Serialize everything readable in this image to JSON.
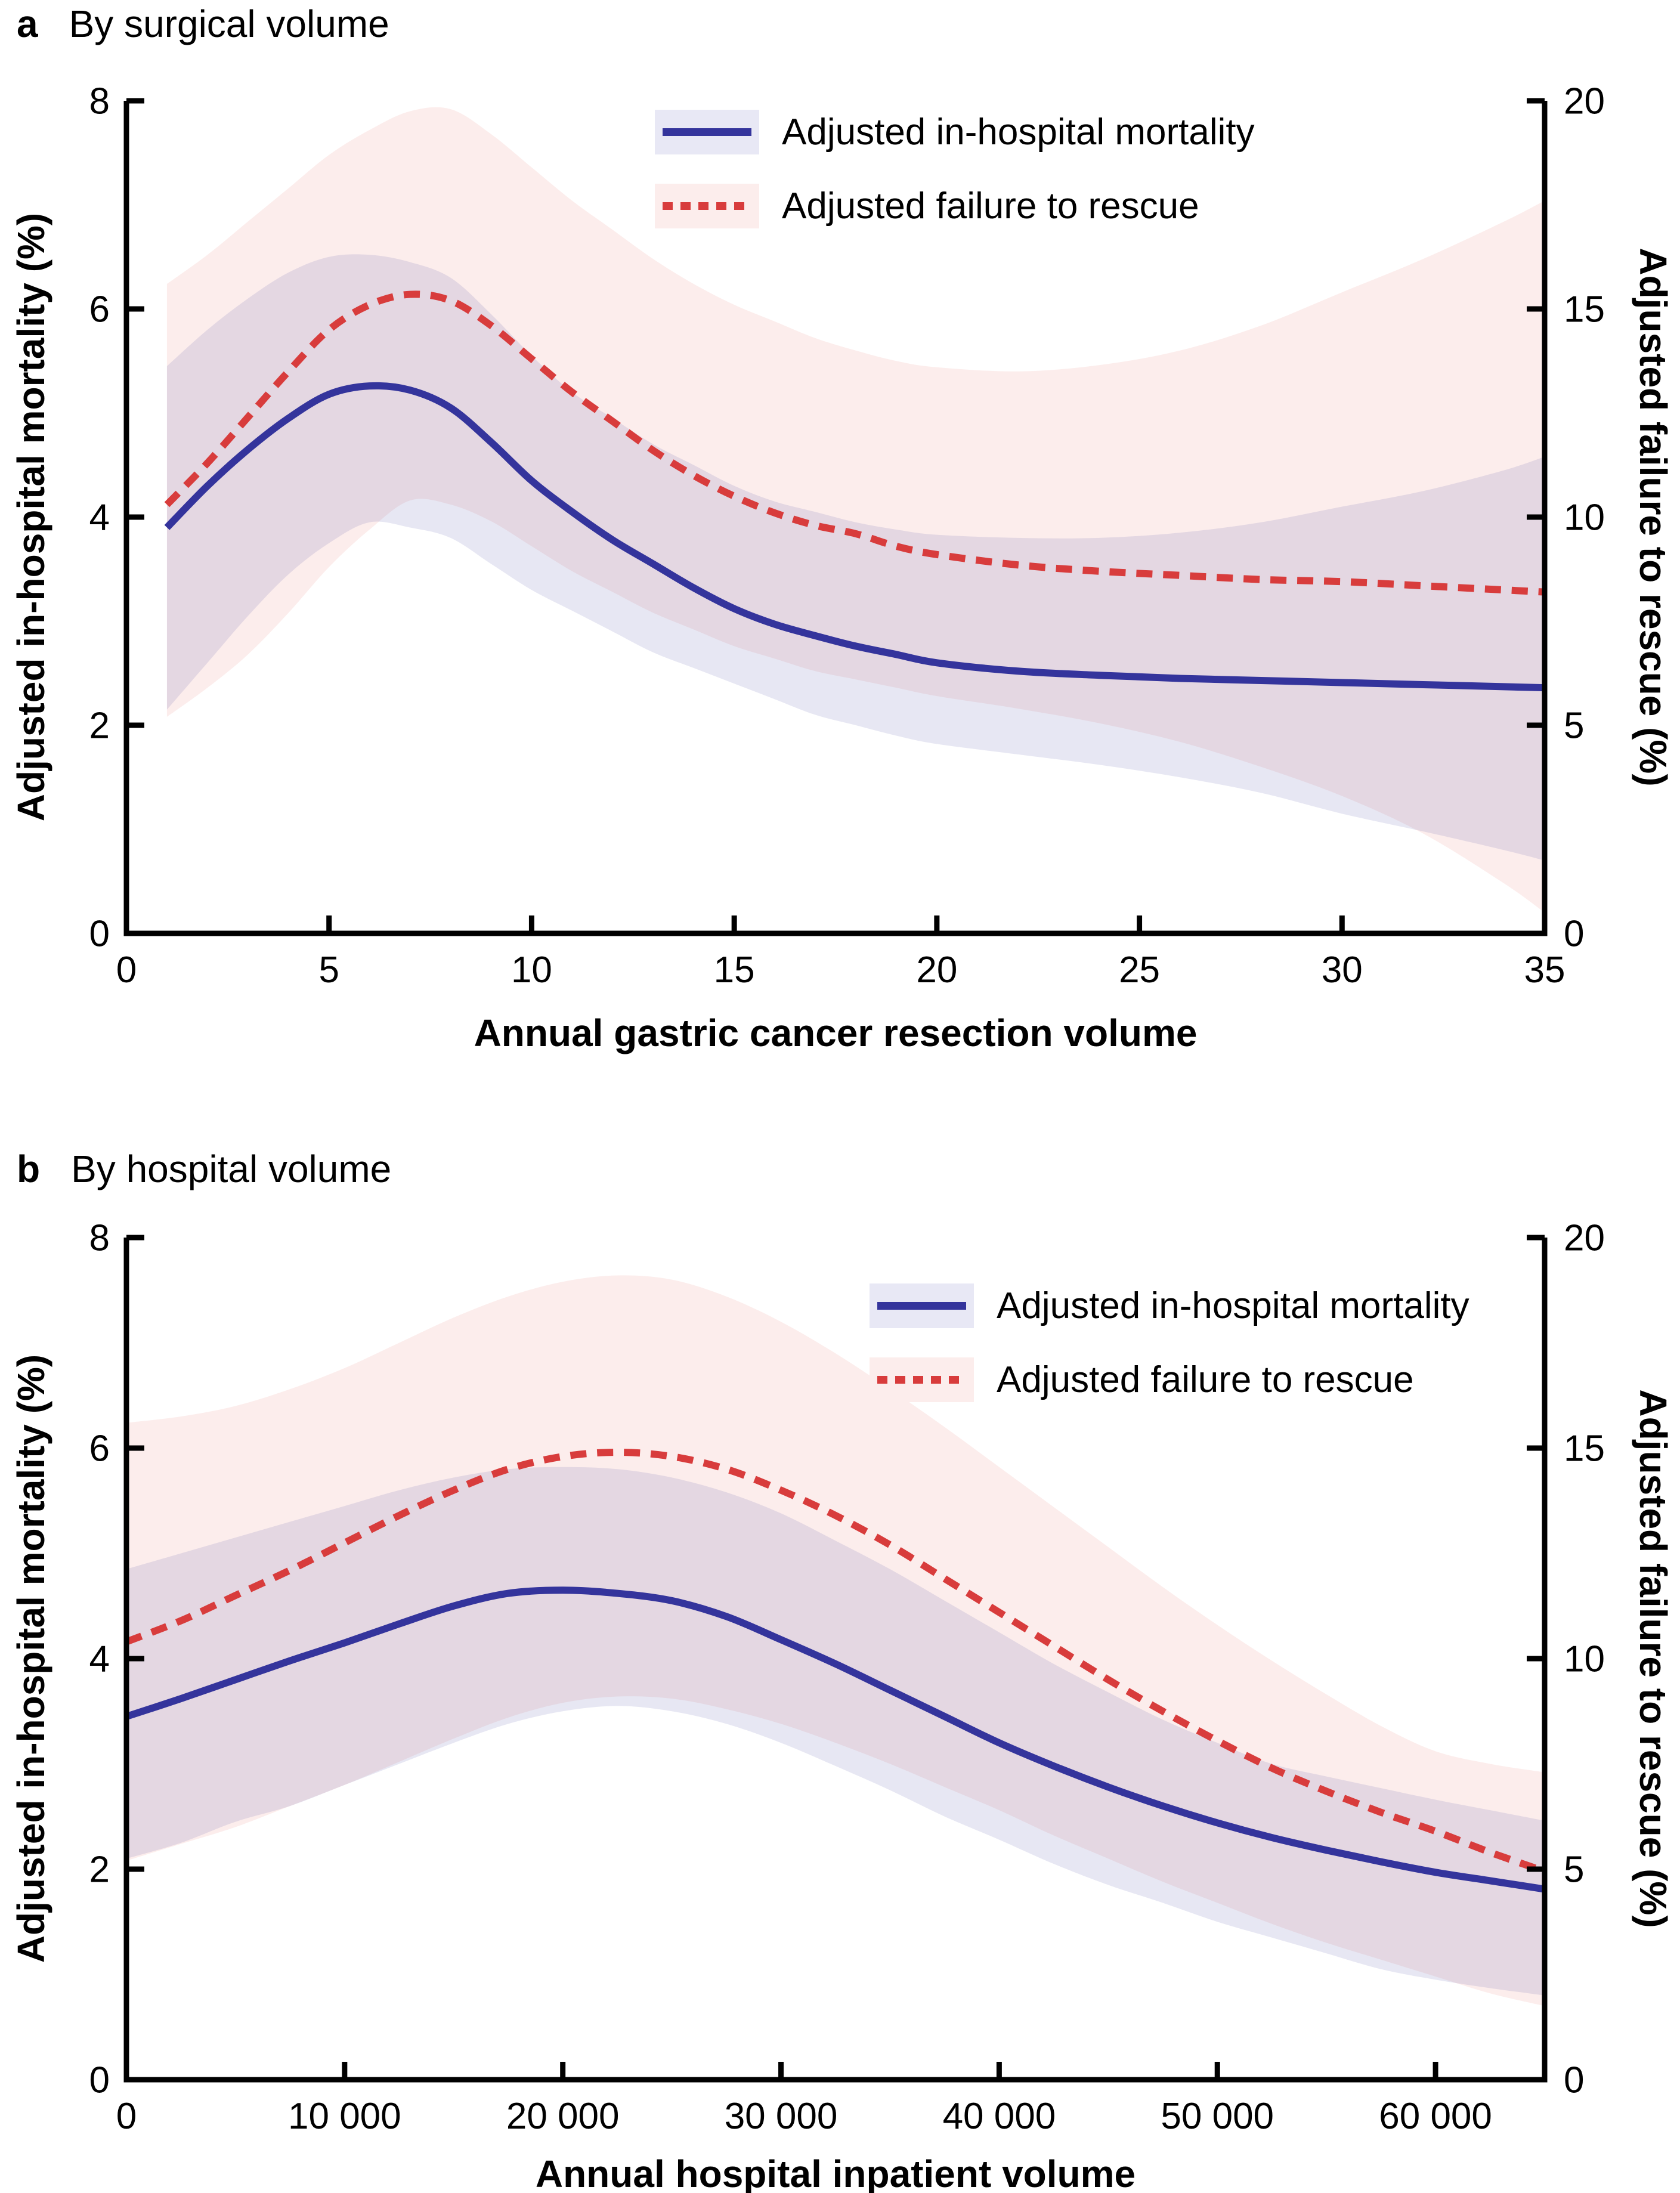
{
  "colors": {
    "mortality_line": "#34349c",
    "failure_to_rescue_line": "#d83c3c",
    "mortality_band_fill": "rgba(88,88,172,0.14)",
    "failure_band_fill": "rgba(232,118,108,0.13)",
    "legend_swatch_mortality_bg": "#e8e8f5",
    "legend_swatch_failure_bg": "#fcedec",
    "axis": "#000000"
  },
  "chart_data": [
    {
      "type": "line",
      "panel_label": "a",
      "title": "By surgical volume",
      "xlabel": "Annual gastric cancer resection volume",
      "ylabel_left": "Adjusted in-hospital mortality (%)",
      "ylabel_right": "Adjusted failure to rescue (%)",
      "xlim": [
        0,
        35
      ],
      "x_ticks": [
        0,
        5,
        10,
        15,
        20,
        25,
        30,
        35
      ],
      "x_tick_labels": [
        "0",
        "5",
        "10",
        "15",
        "20",
        "25",
        "30",
        "35"
      ],
      "ylim_left": [
        0,
        8
      ],
      "y_left_ticks": [
        0,
        2,
        4,
        6,
        8
      ],
      "y_left_tick_labels": [
        "0",
        "2",
        "4",
        "6",
        "8"
      ],
      "ylim_right": [
        0,
        20
      ],
      "y_right_ticks": [
        0,
        5,
        10,
        15,
        20
      ],
      "y_right_tick_labels": [
        "0",
        "5",
        "10",
        "15",
        "20"
      ],
      "grid": false,
      "legend_position": "top-center",
      "legend": [
        {
          "label": "Adjusted in-hospital mortality",
          "series": "mortality"
        },
        {
          "label": "Adjusted failure to rescue",
          "series": "failure_to_rescue"
        }
      ],
      "series": [
        {
          "name": "Adjusted in-hospital mortality",
          "axis": "left",
          "style": "solid",
          "x": [
            1,
            2,
            3,
            4,
            5,
            6,
            7,
            8,
            9,
            10,
            11,
            12,
            13,
            14,
            15,
            16,
            17,
            18,
            19,
            20,
            22,
            24,
            26,
            28,
            30,
            32,
            34,
            35
          ],
          "y": [
            3.9,
            4.3,
            4.65,
            4.95,
            5.18,
            5.26,
            5.22,
            5.05,
            4.72,
            4.35,
            4.05,
            3.78,
            3.55,
            3.32,
            3.12,
            2.97,
            2.86,
            2.76,
            2.68,
            2.6,
            2.52,
            2.48,
            2.45,
            2.43,
            2.41,
            2.39,
            2.37,
            2.36
          ],
          "band_lo": [
            2.15,
            2.6,
            3.05,
            3.45,
            3.75,
            3.95,
            3.9,
            3.8,
            3.55,
            3.3,
            3.1,
            2.9,
            2.7,
            2.55,
            2.4,
            2.25,
            2.1,
            2.0,
            1.9,
            1.82,
            1.72,
            1.62,
            1.5,
            1.35,
            1.15,
            0.98,
            0.8,
            0.7
          ],
          "band_hi": [
            5.45,
            5.8,
            6.1,
            6.35,
            6.5,
            6.52,
            6.45,
            6.3,
            5.95,
            5.55,
            5.2,
            4.95,
            4.7,
            4.5,
            4.3,
            4.15,
            4.05,
            3.95,
            3.88,
            3.83,
            3.8,
            3.8,
            3.85,
            3.95,
            4.1,
            4.25,
            4.45,
            4.58
          ]
        },
        {
          "name": "Adjusted failure to rescue",
          "axis": "right",
          "style": "dashed",
          "x": [
            1,
            2,
            3,
            4,
            5,
            6,
            7,
            8,
            9,
            10,
            11,
            12,
            13,
            14,
            15,
            16,
            17,
            18,
            19,
            20,
            22,
            24,
            26,
            28,
            30,
            32,
            34,
            35
          ],
          "y": [
            10.3,
            11.3,
            12.4,
            13.5,
            14.5,
            15.1,
            15.35,
            15.2,
            14.6,
            13.8,
            13.0,
            12.3,
            11.6,
            11.0,
            10.5,
            10.1,
            9.8,
            9.6,
            9.3,
            9.1,
            8.85,
            8.7,
            8.6,
            8.5,
            8.45,
            8.35,
            8.25,
            8.2
          ],
          "band_lo": [
            5.2,
            5.9,
            6.7,
            7.7,
            8.8,
            9.7,
            10.4,
            10.3,
            9.9,
            9.3,
            8.7,
            8.2,
            7.7,
            7.3,
            6.9,
            6.6,
            6.3,
            6.1,
            5.9,
            5.7,
            5.4,
            5.05,
            4.6,
            4.0,
            3.3,
            2.4,
            1.2,
            0.5
          ],
          "band_hi": [
            15.6,
            16.3,
            17.1,
            17.9,
            18.7,
            19.3,
            19.75,
            19.8,
            19.2,
            18.4,
            17.6,
            16.9,
            16.2,
            15.6,
            15.1,
            14.7,
            14.3,
            14.0,
            13.75,
            13.6,
            13.5,
            13.65,
            14.0,
            14.6,
            15.4,
            16.2,
            17.1,
            17.6
          ]
        }
      ]
    },
    {
      "type": "line",
      "panel_label": "b",
      "title": "By hospital volume",
      "xlabel": "Annual hospital inpatient volume",
      "ylabel_left": "Adjusted in-hospital mortality (%)",
      "ylabel_right": "Adjusted failure to rescue (%)",
      "xlim": [
        0,
        65000
      ],
      "x_ticks": [
        0,
        10000,
        20000,
        30000,
        40000,
        50000,
        60000
      ],
      "x_tick_labels": [
        "0",
        "10 000",
        "20 000",
        "30 000",
        "40 000",
        "50 000",
        "60 000"
      ],
      "ylim_left": [
        0,
        8
      ],
      "y_left_ticks": [
        0,
        2,
        4,
        6,
        8
      ],
      "y_left_tick_labels": [
        "0",
        "2",
        "4",
        "6",
        "8"
      ],
      "ylim_right": [
        0,
        20
      ],
      "y_right_ticks": [
        0,
        5,
        10,
        15,
        20
      ],
      "y_right_tick_labels": [
        "0",
        "5",
        "10",
        "15",
        "20"
      ],
      "grid": false,
      "legend_position": "top-right",
      "legend": [
        {
          "label": "Adjusted in-hospital mortality",
          "series": "mortality"
        },
        {
          "label": "Adjusted failure to rescue",
          "series": "failure_to_rescue"
        }
      ],
      "series": [
        {
          "name": "Adjusted in-hospital mortality",
          "axis": "left",
          "style": "solid",
          "x": [
            0,
            2500,
            5000,
            7500,
            10000,
            12500,
            15000,
            17500,
            20000,
            22500,
            25000,
            27500,
            30000,
            32500,
            35000,
            37500,
            40000,
            42500,
            45000,
            47500,
            50000,
            52500,
            55000,
            57500,
            60000,
            62500,
            65000
          ],
          "y": [
            3.45,
            3.62,
            3.8,
            3.98,
            4.15,
            4.33,
            4.5,
            4.62,
            4.65,
            4.62,
            4.55,
            4.4,
            4.18,
            3.95,
            3.7,
            3.45,
            3.2,
            2.98,
            2.78,
            2.6,
            2.44,
            2.3,
            2.18,
            2.07,
            1.97,
            1.89,
            1.81
          ],
          "band_lo": [
            2.1,
            2.25,
            2.45,
            2.6,
            2.8,
            3.0,
            3.2,
            3.38,
            3.5,
            3.55,
            3.5,
            3.38,
            3.2,
            2.98,
            2.75,
            2.5,
            2.28,
            2.05,
            1.85,
            1.68,
            1.5,
            1.35,
            1.2,
            1.05,
            0.95,
            0.87,
            0.8
          ],
          "band_hi": [
            4.85,
            5.0,
            5.15,
            5.3,
            5.45,
            5.6,
            5.72,
            5.8,
            5.82,
            5.8,
            5.72,
            5.58,
            5.38,
            5.12,
            4.85,
            4.55,
            4.25,
            3.95,
            3.68,
            3.42,
            3.2,
            3.0,
            2.88,
            2.77,
            2.66,
            2.56,
            2.46
          ]
        },
        {
          "name": "Adjusted failure to rescue",
          "axis": "right",
          "style": "dashed",
          "x": [
            0,
            2500,
            5000,
            7500,
            10000,
            12500,
            15000,
            17500,
            20000,
            22500,
            25000,
            27500,
            30000,
            32500,
            35000,
            37500,
            40000,
            42500,
            45000,
            47500,
            50000,
            52500,
            55000,
            57500,
            60000,
            62500,
            65000
          ],
          "y": [
            10.4,
            10.9,
            11.5,
            12.1,
            12.75,
            13.4,
            14.0,
            14.5,
            14.8,
            14.9,
            14.8,
            14.5,
            14.0,
            13.4,
            12.7,
            11.9,
            11.1,
            10.3,
            9.5,
            8.75,
            8.05,
            7.4,
            6.85,
            6.35,
            5.9,
            5.4,
            4.95
          ],
          "band_lo": [
            5.2,
            5.6,
            6.0,
            6.5,
            7.0,
            7.55,
            8.1,
            8.6,
            8.95,
            9.1,
            9.05,
            8.8,
            8.45,
            8.0,
            7.5,
            6.95,
            6.4,
            5.8,
            5.25,
            4.7,
            4.2,
            3.7,
            3.25,
            2.85,
            2.45,
            2.05,
            1.75
          ],
          "band_hi": [
            15.6,
            15.75,
            16.0,
            16.4,
            16.9,
            17.5,
            18.1,
            18.6,
            18.95,
            19.1,
            19.0,
            18.6,
            18.0,
            17.25,
            16.4,
            15.5,
            14.55,
            13.6,
            12.65,
            11.7,
            10.8,
            9.95,
            9.15,
            8.4,
            7.8,
            7.5,
            7.3
          ]
        }
      ]
    }
  ]
}
